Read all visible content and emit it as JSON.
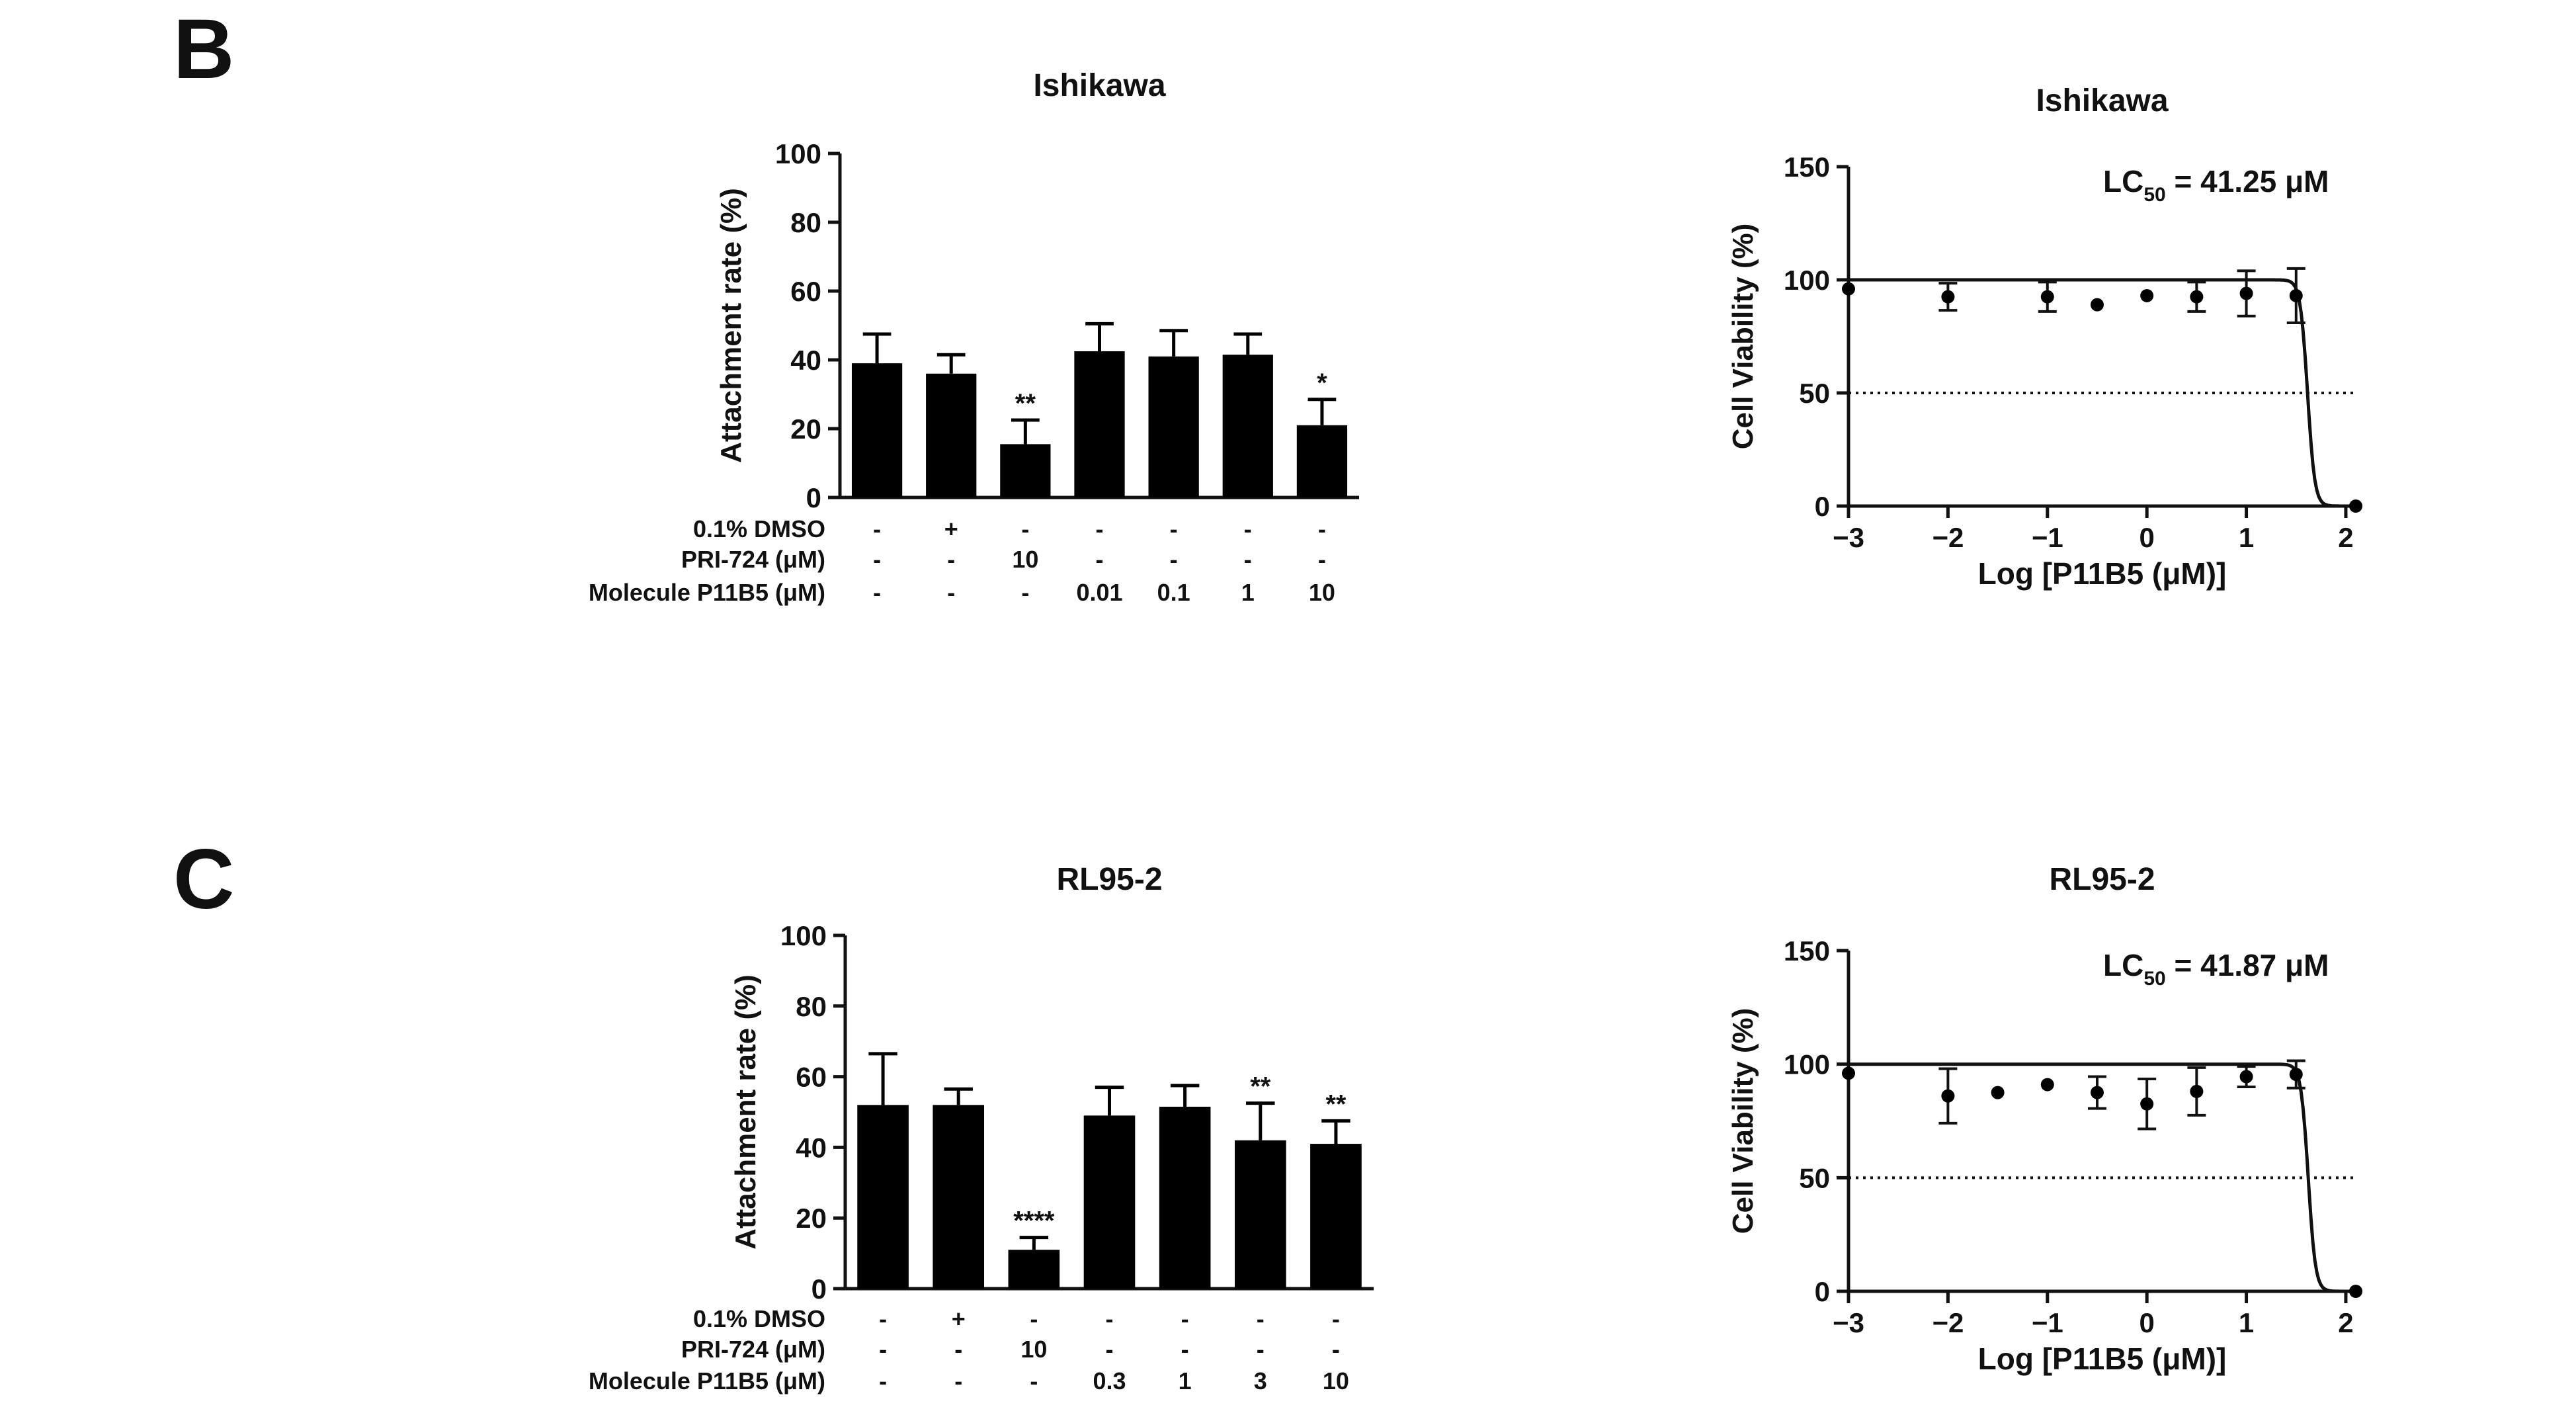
{
  "panels": {
    "B": "B",
    "C": "C"
  },
  "chart_data": [
    {
      "id": "bar_ishikawa",
      "type": "bar",
      "title": "Ishikawa",
      "ylabel": "Attachment rate (%)",
      "ylim": [
        0,
        100
      ],
      "yticks": [
        0,
        20,
        40,
        60,
        80,
        100
      ],
      "values": [
        39,
        36,
        15.5,
        42.5,
        41,
        41.5,
        21
      ],
      "errors": [
        8.5,
        5.5,
        7,
        8,
        7.5,
        6,
        7.5
      ],
      "significance": [
        "",
        "",
        "**",
        "",
        "",
        "",
        "*"
      ],
      "condition_rows": [
        {
          "label": "0.1% DMSO",
          "values": [
            "-",
            "+",
            "-",
            "-",
            "-",
            "-",
            "-"
          ]
        },
        {
          "label": "PRI-724 (μM)",
          "values": [
            "-",
            "-",
            "10",
            "-",
            "-",
            "-",
            "-"
          ]
        },
        {
          "label": "Molecule P11B5 (μM)",
          "values": [
            "-",
            "-",
            "-",
            "0.01",
            "0.1",
            "1",
            "10"
          ]
        }
      ]
    },
    {
      "id": "curve_ishikawa",
      "type": "scatter",
      "title": "Ishikawa",
      "xlabel": "Log [P11B5 (μM)]",
      "ylabel": "Cell Viability (%)",
      "xlim": [
        -3,
        2.1
      ],
      "ylim": [
        0,
        150
      ],
      "xticks": [
        -3,
        -2,
        -1,
        0,
        1,
        2
      ],
      "xtick_labels": [
        "−3",
        "−2",
        "−1",
        "0",
        "1",
        "2"
      ],
      "yticks": [
        0,
        50,
        100,
        150
      ],
      "threshold": 50,
      "lc50_label": "LC",
      "lc50_sub": "50",
      "lc50_value": " = 41.25 μM",
      "lc50_log": 1.615,
      "hill": 12,
      "top": 100,
      "x": [
        -3,
        -2,
        -1,
        -0.5,
        0,
        0.5,
        1,
        1.5,
        2.1
      ],
      "y": [
        96,
        92.5,
        92.5,
        89,
        93,
        92.5,
        94,
        93,
        0
      ],
      "err": [
        0,
        6,
        6.5,
        0,
        0,
        6.5,
        10,
        12,
        0
      ]
    },
    {
      "id": "bar_rl95",
      "type": "bar",
      "title": "RL95-2",
      "ylabel": "Attachment rate (%)",
      "ylim": [
        0,
        100
      ],
      "yticks": [
        0,
        20,
        40,
        60,
        80,
        100
      ],
      "values": [
        52,
        52,
        11,
        49,
        51.5,
        42,
        41
      ],
      "errors": [
        14.5,
        4.5,
        3.5,
        8,
        6,
        10.5,
        6.5
      ],
      "significance": [
        "",
        "",
        "****",
        "",
        "",
        "**",
        "**"
      ],
      "condition_rows": [
        {
          "label": "0.1% DMSO",
          "values": [
            "-",
            "+",
            "-",
            "-",
            "-",
            "-",
            "-"
          ]
        },
        {
          "label": "PRI-724 (μM)",
          "values": [
            "-",
            "-",
            "10",
            "-",
            "-",
            "-",
            "-"
          ]
        },
        {
          "label": "Molecule P11B5 (μM)",
          "values": [
            "-",
            "-",
            "-",
            "0.3",
            "1",
            "3",
            "10"
          ]
        }
      ]
    },
    {
      "id": "curve_rl95",
      "type": "scatter",
      "title": "RL95-2",
      "xlabel": "Log [P11B5 (μM)]",
      "ylabel": "Cell Viability (%)",
      "xlim": [
        -3,
        2.1
      ],
      "ylim": [
        0,
        150
      ],
      "xticks": [
        -3,
        -2,
        -1,
        0,
        1,
        2
      ],
      "xtick_labels": [
        "−3",
        "−2",
        "−1",
        "0",
        "1",
        "2"
      ],
      "yticks": [
        0,
        50,
        100,
        150
      ],
      "threshold": 50,
      "lc50_label": "LC",
      "lc50_sub": "50",
      "lc50_value": " = 41.87 μM",
      "lc50_log": 1.622,
      "hill": 12,
      "top": 100,
      "x": [
        -3,
        -2,
        -1.5,
        -1,
        -0.5,
        0,
        0.5,
        1,
        1.5,
        2.1
      ],
      "y": [
        96,
        86,
        87.5,
        91,
        87.5,
        82.5,
        88,
        94.5,
        95.5,
        0
      ],
      "err": [
        0,
        12,
        0,
        0,
        7,
        11,
        10.5,
        4.5,
        6,
        0
      ]
    }
  ]
}
